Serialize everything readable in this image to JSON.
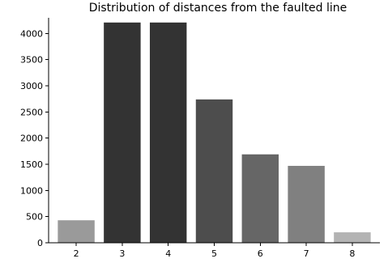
{
  "chart_data": {
    "type": "bar",
    "title": "Distribution of distances from the faulted line",
    "xlabel": "",
    "ylabel": "",
    "categories": [
      "2",
      "3",
      "4",
      "5",
      "6",
      "7",
      "8"
    ],
    "values": [
      430,
      4210,
      4210,
      2740,
      1690,
      1470,
      200
    ],
    "bar_colors": [
      "#9a9a9a",
      "#333333",
      "#333333",
      "#4d4d4d",
      "#666666",
      "#808080",
      "#b3b3b3"
    ],
    "ylim": [
      0,
      4300
    ],
    "yticks": [
      0,
      500,
      1000,
      1500,
      2000,
      2500,
      3000,
      3500,
      4000
    ],
    "ytick_labels": [
      "0",
      "500",
      "1000",
      "1500",
      "2000",
      "2500",
      "3000",
      "3500",
      "4000"
    ],
    "grid": false,
    "legend": "none"
  }
}
